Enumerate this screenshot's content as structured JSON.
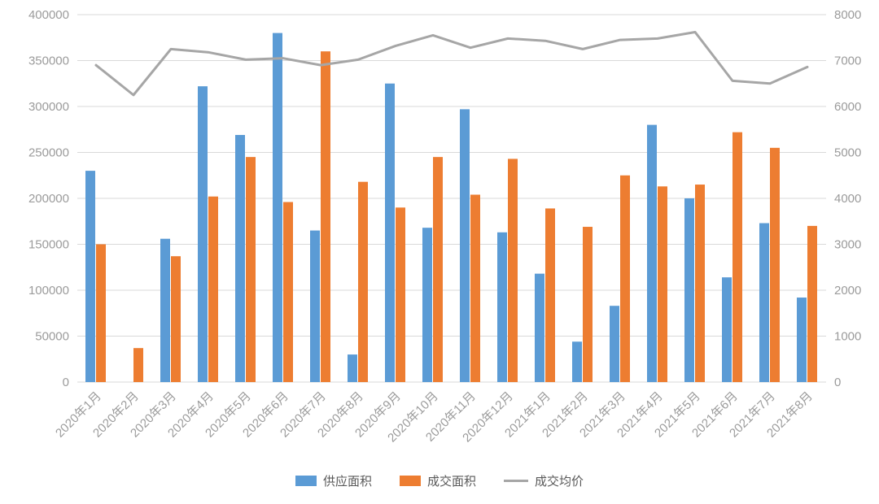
{
  "chart_data": {
    "type": "bar",
    "subtype": "grouped-bars-with-line-dual-axis",
    "title": "",
    "xlabel": "",
    "ylabel_left": "",
    "ylabel_right": "",
    "grid": true,
    "legend_position": "bottom",
    "categories": [
      "2020年1月",
      "2020年2月",
      "2020年3月",
      "2020年4月",
      "2020年5月",
      "2020年6月",
      "2020年7月",
      "2020年8月",
      "2020年9月",
      "2020年10月",
      "2020年11月",
      "2020年12月",
      "2021年1月",
      "2021年2月",
      "2021年3月",
      "2021年4月",
      "2021年5月",
      "2021年6月",
      "2021年7月",
      "2021年8月"
    ],
    "left_axis": {
      "min": 0,
      "max": 400000,
      "step": 50000,
      "tick_labels": [
        "0",
        "50000",
        "100000",
        "150000",
        "200000",
        "250000",
        "300000",
        "350000",
        "400000"
      ]
    },
    "right_axis": {
      "min": 0,
      "max": 8000,
      "step": 1000,
      "tick_labels": [
        "0",
        "1000",
        "2000",
        "3000",
        "4000",
        "5000",
        "6000",
        "7000",
        "8000"
      ]
    },
    "series": [
      {
        "name": "供应面积",
        "type": "bar",
        "axis": "left",
        "color": "#5B9BD5",
        "values": [
          230000,
          0,
          156000,
          322000,
          269000,
          380000,
          165000,
          30000,
          325000,
          168000,
          297000,
          163000,
          118000,
          44000,
          83000,
          280000,
          200000,
          114000,
          173000,
          92000
        ]
      },
      {
        "name": "成交面积",
        "type": "bar",
        "axis": "left",
        "color": "#ED7D31",
        "values": [
          150000,
          37000,
          137000,
          202000,
          245000,
          196000,
          360000,
          218000,
          190000,
          245000,
          204000,
          243000,
          189000,
          169000,
          225000,
          213000,
          215000,
          272000,
          255000,
          170000
        ]
      },
      {
        "name": "成交均价",
        "type": "line",
        "axis": "right",
        "color": "#A6A6A6",
        "values": [
          6900,
          6250,
          7250,
          7180,
          7020,
          7050,
          6900,
          7020,
          7320,
          7550,
          7280,
          7480,
          7430,
          7250,
          7450,
          7480,
          7620,
          6560,
          6500,
          6860
        ]
      }
    ],
    "colors": {
      "grid": "#D9D9D9",
      "tick_text": "#9B9B9B",
      "legend_text": "#595959"
    }
  }
}
